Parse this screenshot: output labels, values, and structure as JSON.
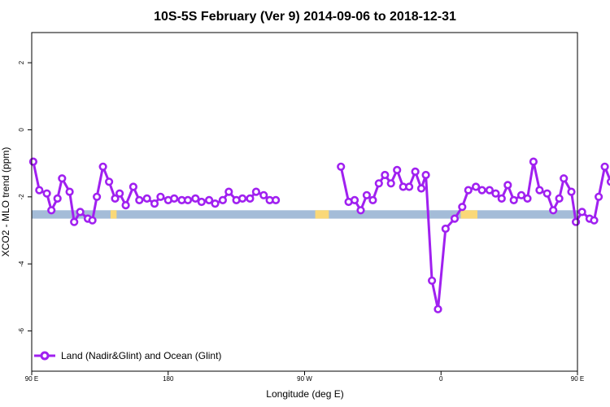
{
  "chart_data": {
    "type": "line",
    "title": "10S-5S February (Ver 9)   2014-09-06 to 2018-12-31",
    "xlabel": "Longitude (deg E)",
    "ylabel": "XCO2 - MLO trend (ppm)",
    "xlim": [
      90,
      450
    ],
    "ylim": [
      -7.2,
      2.9
    ],
    "x_ticks": [
      {
        "value": 90,
        "label": "90 E"
      },
      {
        "value": 180,
        "label": "180"
      },
      {
        "value": 270,
        "label": "90 W"
      },
      {
        "value": 360,
        "label": "0"
      },
      {
        "value": 450,
        "label": "90 E"
      },
      {
        "value": 540,
        "label": "180"
      }
    ],
    "y_ticks": [
      {
        "value": 2,
        "label": "2"
      },
      {
        "value": 0,
        "label": "0"
      },
      {
        "value": -2,
        "label": "-2"
      },
      {
        "value": -4,
        "label": "-4"
      },
      {
        "value": -6,
        "label": "-6"
      }
    ],
    "legend": {
      "label": "Land (Nadir&Glint) and Ocean (Glint)",
      "position": "bottom-left"
    },
    "line_color": "#a020f0",
    "land_ocean_band": {
      "y_range": [
        -2.65,
        -2.4
      ],
      "ocean_color": "#a4bcd8",
      "land_color": "#fad878",
      "land_segments": [
        [
          142,
          146
        ],
        [
          277,
          286
        ],
        [
          373,
          384
        ],
        [
          487,
          491
        ]
      ]
    },
    "series": [
      {
        "segments": [
          [
            [
              91,
              -0.95
            ],
            [
              95,
              -1.8
            ],
            [
              100,
              -1.9
            ],
            [
              103,
              -2.4
            ],
            [
              107,
              -2.05
            ],
            [
              110,
              -1.45
            ],
            [
              115,
              -1.85
            ],
            [
              118,
              -2.75
            ],
            [
              122,
              -2.45
            ],
            [
              127,
              -2.65
            ],
            [
              130,
              -2.7
            ],
            [
              133,
              -2.0
            ],
            [
              137,
              -1.1
            ],
            [
              141,
              -1.55
            ],
            [
              145,
              -2.05
            ],
            [
              148,
              -1.9
            ],
            [
              152,
              -2.25
            ],
            [
              157,
              -1.7
            ],
            [
              161,
              -2.1
            ],
            [
              166,
              -2.05
            ],
            [
              171,
              -2.2
            ],
            [
              175,
              -2.0
            ],
            [
              180,
              -2.1
            ],
            [
              184,
              -2.05
            ],
            [
              189,
              -2.1
            ],
            [
              193,
              -2.1
            ],
            [
              198,
              -2.05
            ],
            [
              202,
              -2.15
            ],
            [
              207,
              -2.1
            ],
            [
              211,
              -2.2
            ],
            [
              216,
              -2.1
            ],
            [
              220,
              -1.85
            ],
            [
              225,
              -2.1
            ],
            [
              229,
              -2.05
            ],
            [
              234,
              -2.05
            ],
            [
              238,
              -1.85
            ],
            [
              243,
              -1.95
            ],
            [
              247,
              -2.1
            ],
            [
              251,
              -2.1
            ]
          ],
          [
            [
              294,
              -1.1
            ],
            [
              299,
              -2.15
            ],
            [
              303,
              -2.1
            ],
            [
              307,
              -2.4
            ],
            [
              311,
              -1.95
            ],
            [
              315,
              -2.1
            ],
            [
              319,
              -1.6
            ],
            [
              323,
              -1.35
            ],
            [
              327,
              -1.6
            ],
            [
              331,
              -1.2
            ],
            [
              335,
              -1.7
            ],
            [
              339,
              -1.7
            ],
            [
              343,
              -1.25
            ],
            [
              347,
              -1.75
            ],
            [
              350,
              -1.35
            ],
            [
              354,
              -4.5
            ],
            [
              358,
              -5.35
            ],
            [
              363,
              -2.95
            ],
            [
              369,
              -2.65
            ],
            [
              374,
              -2.3
            ],
            [
              378,
              -1.8
            ],
            [
              383,
              -1.7
            ],
            [
              387,
              -1.8
            ],
            [
              392,
              -1.8
            ],
            [
              396,
              -1.9
            ],
            [
              400,
              -2.05
            ],
            [
              404,
              -1.65
            ],
            [
              408,
              -2.1
            ],
            [
              413,
              -1.95
            ],
            [
              417,
              -2.05
            ],
            [
              421,
              -0.95
            ],
            [
              425,
              -1.8
            ],
            [
              430,
              -1.9
            ],
            [
              434,
              -2.4
            ],
            [
              438,
              -2.05
            ],
            [
              441,
              -1.45
            ],
            [
              446,
              -1.85
            ],
            [
              449,
              -2.75
            ],
            [
              453,
              -2.45
            ],
            [
              458,
              -2.65
            ],
            [
              461,
              -2.7
            ],
            [
              464,
              -2.0
            ],
            [
              468,
              -1.1
            ],
            [
              472,
              -1.55
            ],
            [
              476,
              -2.05
            ],
            [
              479,
              -1.9
            ],
            [
              483,
              -2.25
            ],
            [
              488,
              -1.7
            ]
          ]
        ],
        "x_offset": -90
      }
    ]
  }
}
